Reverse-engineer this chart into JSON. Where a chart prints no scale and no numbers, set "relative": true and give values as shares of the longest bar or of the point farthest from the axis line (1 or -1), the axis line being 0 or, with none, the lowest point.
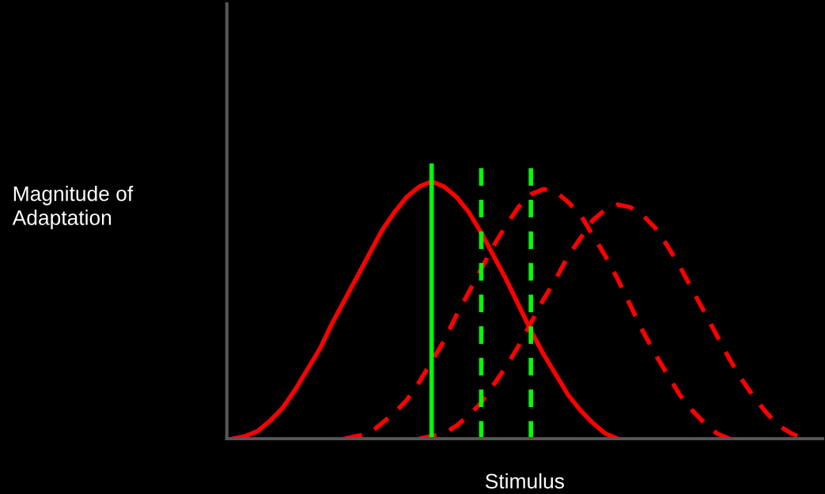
{
  "chart_data": {
    "type": "line",
    "relative": true,
    "xlabel": "Stimulus",
    "ylabel": "Magnitude of\nAdaptation",
    "grid": false,
    "legend": false,
    "marker": "none",
    "categories": [
      null,
      null,
      null,
      null,
      null,
      null,
      null,
      null,
      null,
      null,
      null,
      null,
      null,
      null,
      null,
      null,
      null,
      null,
      null,
      null,
      null,
      null,
      null,
      null,
      null,
      null,
      null,
      null,
      null,
      null,
      null,
      null,
      null,
      null,
      null,
      null,
      null,
      null,
      null,
      null,
      null,
      null,
      null,
      null,
      null,
      null,
      null,
      null
    ],
    "series": [
      {
        "color": "#ff0000",
        "line_style": "solid",
        "values": [
          0,
          0.01,
          0.03,
          0.07,
          0.12,
          0.19,
          0.27,
          0.35,
          0.45,
          0.54,
          0.63,
          0.72,
          0.81,
          0.88,
          0.94,
          0.98,
          1,
          0.98,
          0.94,
          0.88,
          0.8,
          0.71,
          0.62,
          0.52,
          0.42,
          0.33,
          0.25,
          0.17,
          0.11,
          0.06,
          0.02,
          0.0,
          null,
          null,
          null,
          null,
          null,
          null,
          null,
          null,
          null,
          null,
          null,
          null,
          null,
          null,
          null,
          null
        ]
      },
      {
        "color": "#ff0000",
        "line_style": "dashed",
        "values": [
          null,
          null,
          null,
          null,
          null,
          null,
          null,
          null,
          null,
          0,
          0.01,
          0.02,
          0.06,
          0.1,
          0.15,
          0.22,
          0.3,
          0.38,
          0.48,
          0.57,
          0.66,
          0.75,
          0.83,
          0.9,
          0.95,
          0.97,
          0.96,
          0.92,
          0.87,
          0.79,
          0.71,
          0.62,
          0.52,
          0.42,
          0.33,
          0.25,
          0.17,
          0.11,
          0.06,
          0.02,
          0.0,
          null,
          null,
          null,
          null,
          null,
          null,
          null
        ]
      },
      {
        "color": "#ff0000",
        "line_style": "dashed",
        "values": [
          null,
          null,
          null,
          null,
          null,
          null,
          null,
          null,
          null,
          null,
          null,
          null,
          null,
          null,
          null,
          0,
          0.01,
          0.02,
          0.05,
          0.09,
          0.14,
          0.21,
          0.28,
          0.36,
          0.45,
          0.54,
          0.62,
          0.71,
          0.78,
          0.85,
          0.89,
          0.91,
          0.9,
          0.87,
          0.82,
          0.75,
          0.67,
          0.58,
          0.49,
          0.4,
          0.31,
          0.23,
          0.16,
          0.1,
          0.05,
          0.02,
          0.0,
          null
        ]
      }
    ]
  }
}
